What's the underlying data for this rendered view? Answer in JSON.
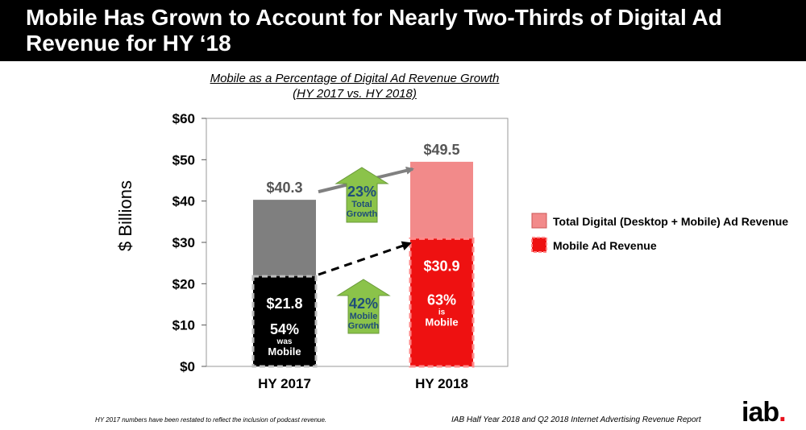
{
  "header": {
    "title": "Mobile Has Grown to Account for Nearly Two-Thirds of Digital Ad Revenue for HY ‘18"
  },
  "chart_data": {
    "type": "bar",
    "title": "Mobile as a Percentage of Digital Ad Revenue Growth",
    "subtitle": "(HY 2017 vs. HY 2018)",
    "ylabel": "$ Billions",
    "xlabel": "",
    "ylim": [
      0,
      60
    ],
    "yticks": [
      0,
      10,
      20,
      30,
      40,
      50,
      60
    ],
    "ytick_labels": [
      "$0",
      "$10",
      "$20",
      "$30",
      "$40",
      "$50",
      "$60"
    ],
    "grid": false,
    "legend_position": "right",
    "categories": [
      "HY 2017",
      "HY 2018"
    ],
    "series": [
      {
        "name": "Total Digital (Desktop + Mobile) Ad Revenue",
        "values": [
          40.3,
          49.5
        ],
        "labels": [
          "$40.3",
          "$49.5"
        ],
        "colors": [
          "#7f7f7f",
          "#f28a8a"
        ]
      },
      {
        "name": "Mobile Ad Revenue",
        "values": [
          21.8,
          30.9
        ],
        "labels": [
          "$21.8",
          "$30.9"
        ],
        "colors": [
          "#000000",
          "#ee1111"
        ]
      }
    ],
    "mobile_share": [
      {
        "pct": "54%",
        "line1": "was",
        "line2": "Mobile"
      },
      {
        "pct": "63%",
        "line1": "is",
        "line2": "Mobile"
      }
    ],
    "annotations": [
      {
        "pct": "23%",
        "line1": "Total",
        "line2": "Growth"
      },
      {
        "pct": "42%",
        "line1": "Mobile",
        "line2": "Growth"
      }
    ],
    "colors": {
      "arrow_fill": "#8bc34a",
      "arrow_stroke": "#6a9a3a",
      "arrow_text": "#1f4e79"
    }
  },
  "footer": {
    "footnote": "HY 2017 numbers have been restated to reflect the inclusion of podcast revenue.",
    "source": "IAB Half Year 2018 and Q2 2018 Internet Advertising Revenue Report",
    "logo_text": "iab",
    "logo_dot": "."
  }
}
